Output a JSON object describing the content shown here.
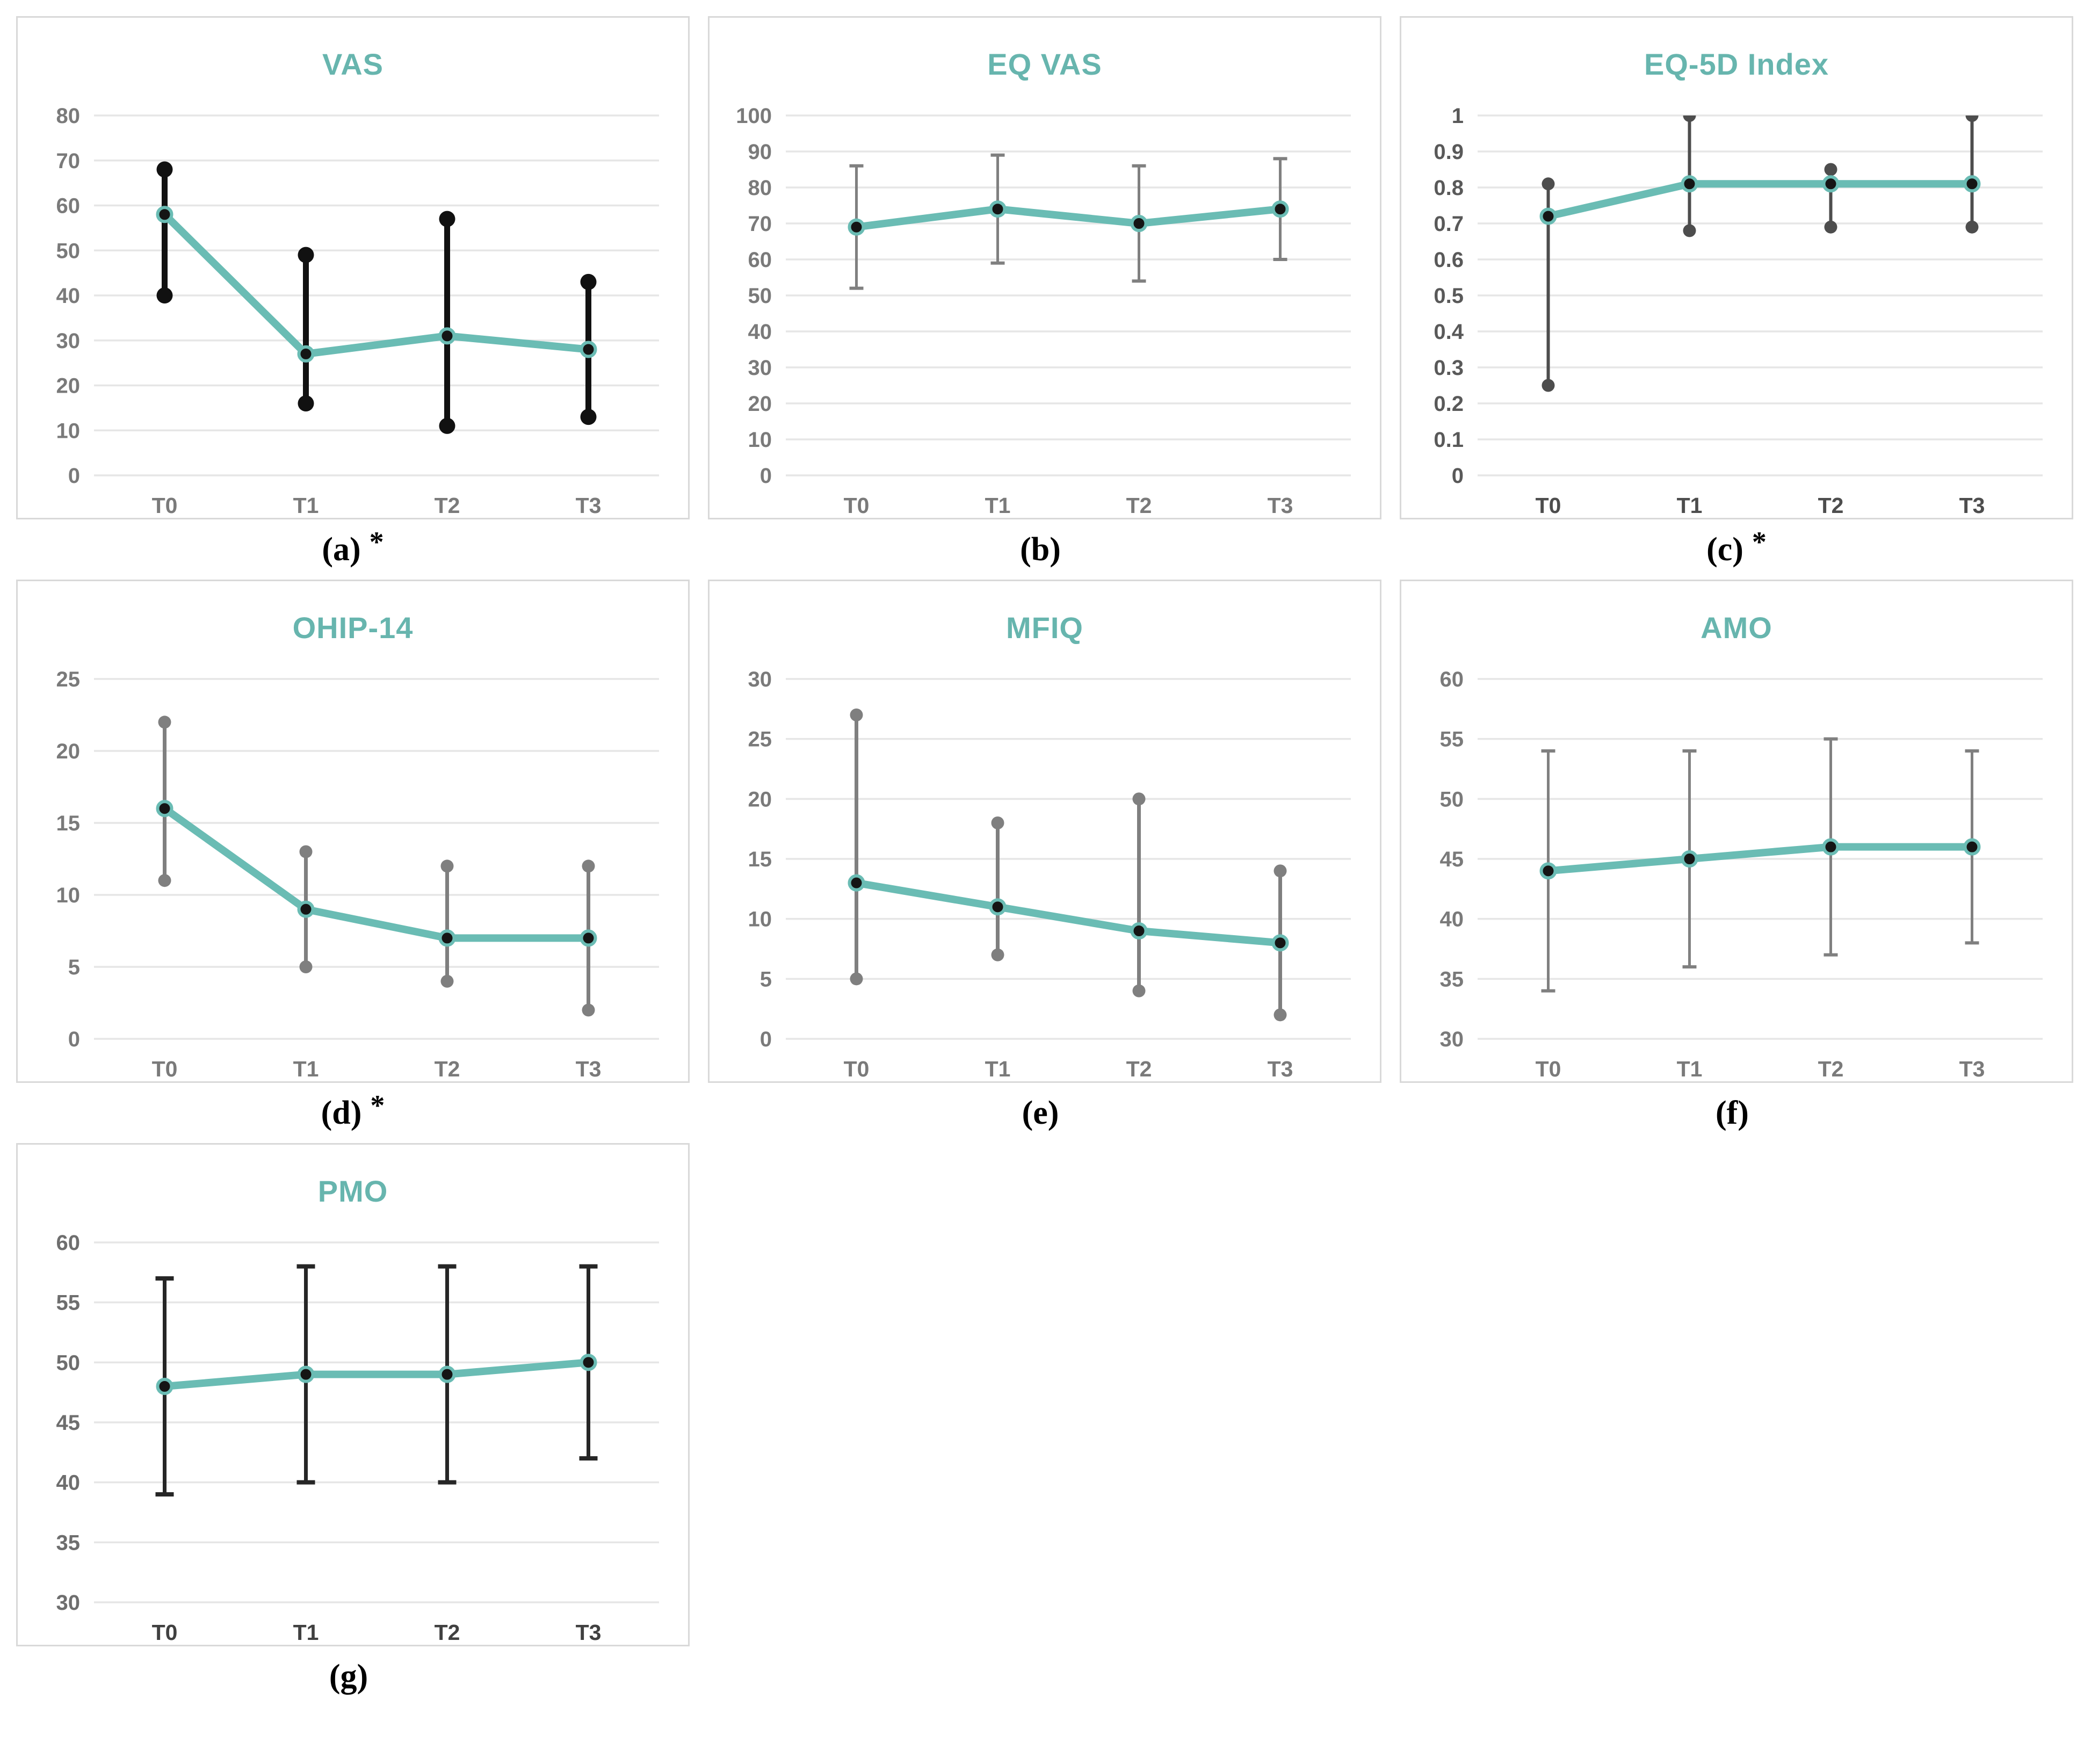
{
  "page": {
    "background": "#ffffff"
  },
  "colors": {
    "line": "#6ABCB4",
    "marker_core": "#151515",
    "title": "#67B5AE",
    "grid": "#E6E6E6",
    "panel_border": "#D9D9D9",
    "caption_text": "#000000",
    "default_label": "#7A7A7A"
  },
  "chart_data": [
    {
      "key": "vas",
      "type": "line",
      "title": "VAS",
      "caption": "(a)",
      "star": "*",
      "categories": [
        "T0",
        "T1",
        "T2",
        "T3"
      ],
      "series": [
        {
          "name": "VAS",
          "values": [
            58,
            27,
            31,
            28
          ]
        }
      ],
      "error_low": [
        40,
        16,
        11,
        13
      ],
      "error_high": [
        68,
        49,
        57,
        43
      ],
      "ylim": [
        0,
        80
      ],
      "ystep": 10,
      "xlabel": "",
      "ylabel": "",
      "grid": true,
      "legend": "none",
      "label_color": "#7A7A7A",
      "cat_label_color": "#7A7A7A",
      "error": {
        "style": "dot",
        "color": "#111111",
        "width": 11,
        "end_size": 15
      }
    },
    {
      "key": "eq-vas",
      "type": "line",
      "title": "EQ VAS",
      "caption": "(b)",
      "star": "",
      "categories": [
        "T0",
        "T1",
        "T2",
        "T3"
      ],
      "series": [
        {
          "name": "EQ VAS",
          "values": [
            69,
            74,
            70,
            74
          ]
        }
      ],
      "error_low": [
        52,
        59,
        54,
        60
      ],
      "error_high": [
        86,
        89,
        86,
        88
      ],
      "ylim": [
        0,
        100
      ],
      "ystep": 10,
      "xlabel": "",
      "ylabel": "",
      "grid": true,
      "legend": "none",
      "label_color": "#7A7A7A",
      "cat_label_color": "#7A7A7A",
      "error": {
        "style": "cap",
        "color": "#808080",
        "width": 5,
        "cap_halfwidth": 13
      }
    },
    {
      "key": "eq5d-index",
      "type": "line",
      "title": "EQ-5D Index",
      "caption": "(c)",
      "star": "*",
      "categories": [
        "T0",
        "T1",
        "T2",
        "T3"
      ],
      "series": [
        {
          "name": "EQ-5D Index",
          "values": [
            0.72,
            0.81,
            0.81,
            0.81
          ]
        }
      ],
      "error_low": [
        0.25,
        0.68,
        0.69,
        0.69
      ],
      "error_high": [
        0.81,
        1,
        0.85,
        1
      ],
      "ylim": [
        0,
        1
      ],
      "ystep": 0.1,
      "xlabel": "",
      "ylabel": "",
      "grid": true,
      "legend": "none",
      "label_color": "#595959",
      "cat_label_color": "#4D4D4D",
      "error": {
        "style": "dot",
        "color": "#4D4D4D",
        "width": 6,
        "end_size": 12
      }
    },
    {
      "key": "ohip-14",
      "type": "line",
      "title": "OHIP-14",
      "caption": "(d)",
      "star": "*",
      "categories": [
        "T0",
        "T1",
        "T2",
        "T3"
      ],
      "series": [
        {
          "name": "OHIP-14",
          "values": [
            16,
            9,
            7,
            7
          ]
        }
      ],
      "error_low": [
        11,
        5,
        4,
        2
      ],
      "error_high": [
        22,
        13,
        12,
        12
      ],
      "ylim": [
        0,
        25
      ],
      "ystep": 5,
      "xlabel": "",
      "ylabel": "",
      "grid": true,
      "legend": "none",
      "label_color": "#7A7A7A",
      "cat_label_color": "#7A7A7A",
      "error": {
        "style": "dot",
        "color": "#7F7F7F",
        "width": 7,
        "end_size": 12
      }
    },
    {
      "key": "mfiq",
      "type": "line",
      "title": "MFIQ",
      "caption": "(e)",
      "star": "",
      "categories": [
        "T0",
        "T1",
        "T2",
        "T3"
      ],
      "series": [
        {
          "name": "MFIQ",
          "values": [
            13,
            11,
            9,
            8
          ]
        }
      ],
      "error_low": [
        5,
        7,
        4,
        2
      ],
      "error_high": [
        27,
        18,
        20,
        14
      ],
      "ylim": [
        0,
        30
      ],
      "ystep": 5,
      "xlabel": "",
      "ylabel": "",
      "grid": true,
      "legend": "none",
      "label_color": "#7A7A7A",
      "cat_label_color": "#7A7A7A",
      "error": {
        "style": "dot",
        "color": "#7F7F7F",
        "width": 7,
        "end_size": 12
      }
    },
    {
      "key": "amo",
      "type": "line",
      "title": "AMO",
      "caption": "(f)",
      "star": "",
      "categories": [
        "T0",
        "T1",
        "T2",
        "T3"
      ],
      "series": [
        {
          "name": "AMO",
          "values": [
            44,
            45,
            46,
            46
          ]
        }
      ],
      "error_low": [
        34,
        36,
        37,
        38
      ],
      "error_high": [
        54,
        54,
        55,
        54
      ],
      "ylim": [
        30,
        60
      ],
      "ystep": 5,
      "xlabel": "",
      "ylabel": "",
      "grid": true,
      "legend": "none",
      "label_color": "#7A7A7A",
      "cat_label_color": "#7A7A7A",
      "error": {
        "style": "cap",
        "color": "#808080",
        "width": 5,
        "cap_halfwidth": 13
      }
    },
    {
      "key": "pmo",
      "type": "line",
      "title": "PMO",
      "caption": "(g)",
      "star": "",
      "categories": [
        "T0",
        "T1",
        "T2",
        "T3"
      ],
      "series": [
        {
          "name": "PMO",
          "values": [
            48,
            49,
            49,
            50
          ]
        }
      ],
      "error_low": [
        39,
        40,
        40,
        42
      ],
      "error_high": [
        57,
        58,
        58,
        58
      ],
      "ylim": [
        30,
        60
      ],
      "ystep": 5,
      "xlabel": "",
      "ylabel": "",
      "grid": true,
      "legend": "none",
      "label_color": "#6E6E6E",
      "cat_label_color": "#404040",
      "error": {
        "style": "cap",
        "color": "#262626",
        "width": 7,
        "cap_halfwidth": 17
      }
    }
  ]
}
